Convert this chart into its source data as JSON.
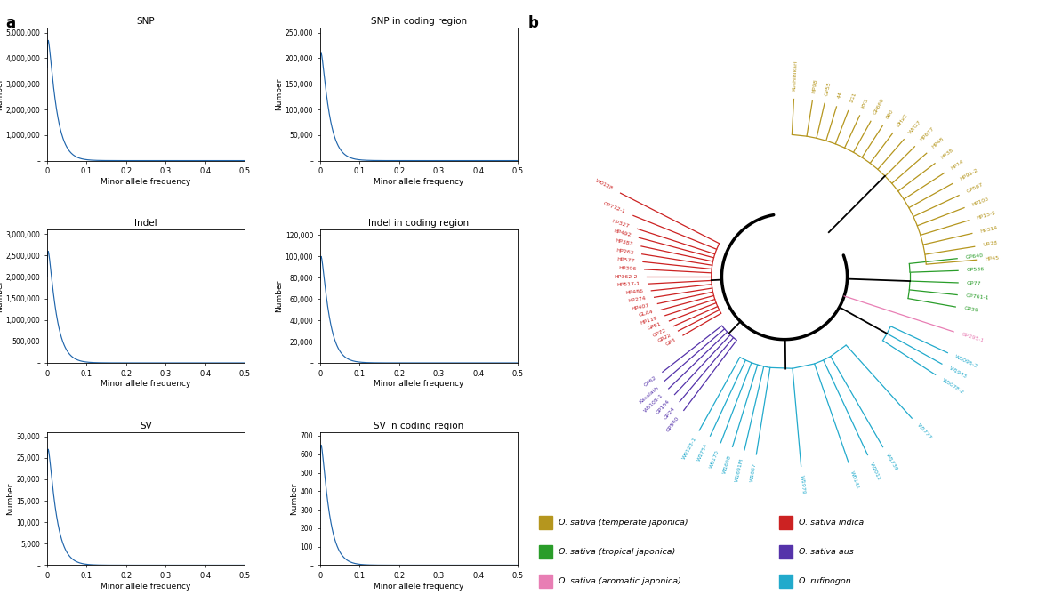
{
  "plots": [
    {
      "title": "SNP",
      "yticks": [
        0,
        1000000,
        2000000,
        3000000,
        4000000,
        5000000
      ],
      "ytick_labels": [
        "–",
        "1,000,000",
        "2,000,000",
        "3,000,000",
        "4,000,000",
        "5,000,000"
      ],
      "ymax": 5200000,
      "peak": 4700000,
      "shape": 1.15,
      "scale": 0.018
    },
    {
      "title": "SNP in coding region",
      "yticks": [
        0,
        50000,
        100000,
        150000,
        200000,
        250000
      ],
      "ytick_labels": [
        "–",
        "50,000",
        "100,000",
        "150,000",
        "200,000",
        "250,000"
      ],
      "ymax": 260000,
      "peak": 210000,
      "shape": 1.15,
      "scale": 0.018
    },
    {
      "title": "Indel",
      "yticks": [
        0,
        500000,
        1000000,
        1500000,
        2000000,
        2500000,
        3000000
      ],
      "ytick_labels": [
        "–",
        "500,000",
        "1,000,000",
        "1,500,000",
        "2,000,000",
        "2,500,000",
        "3,000,000"
      ],
      "ymax": 3100000,
      "peak": 2600000,
      "shape": 1.15,
      "scale": 0.018
    },
    {
      "title": "Indel in coding region",
      "yticks": [
        0,
        20000,
        40000,
        60000,
        80000,
        100000,
        120000
      ],
      "ytick_labels": [
        "–",
        "20,000",
        "40,000",
        "60,000",
        "80,000",
        "100,000",
        "120,000"
      ],
      "ymax": 125000,
      "peak": 100000,
      "shape": 1.15,
      "scale": 0.018
    },
    {
      "title": "SV",
      "yticks": [
        0,
        5000,
        10000,
        15000,
        20000,
        25000,
        30000
      ],
      "ytick_labels": [
        "–",
        "5,000",
        "10,000",
        "15,000",
        "20,000",
        "25,000",
        "30,000"
      ],
      "ymax": 31000,
      "peak": 27000,
      "shape": 1.15,
      "scale": 0.018
    },
    {
      "title": "SV in coding region",
      "yticks": [
        0,
        100,
        200,
        300,
        400,
        500,
        600,
        700
      ],
      "ytick_labels": [
        "–",
        "100",
        "200",
        "300",
        "400",
        "500",
        "600",
        "700"
      ],
      "ymax": 720,
      "peak": 650,
      "shape": 1.15,
      "scale": 0.018
    }
  ],
  "line_color": "#2166ac",
  "xlabel": "Minor allele frequency",
  "ylabel": "Number",
  "colors": {
    "temperate_japonica": "#b5961e",
    "tropical_japonica": "#2a9d2a",
    "aromatic_japonica": "#e87eb4",
    "indica": "#cc2222",
    "aus": "#5533aa",
    "rufipogon": "#22aacc"
  },
  "indica_members": [
    [
      "W0128",
      153,
      0.88
    ],
    [
      "GP772-1",
      158,
      0.78
    ],
    [
      "HP327",
      162,
      0.74
    ],
    [
      "HP492",
      165,
      0.72
    ],
    [
      "HP383",
      168,
      0.7
    ],
    [
      "HP263",
      171,
      0.69
    ],
    [
      "HP577",
      174,
      0.68
    ],
    [
      "HP396",
      177,
      0.67
    ],
    [
      "HP362-2",
      180,
      0.66
    ],
    [
      "HP517-1",
      183,
      0.65
    ],
    [
      "HP486",
      186,
      0.64
    ],
    [
      "HP274",
      189,
      0.63
    ],
    [
      "HP407",
      192,
      0.62
    ],
    [
      "GLA4",
      195,
      0.61
    ],
    [
      "HP119",
      198,
      0.6
    ],
    [
      "GP51",
      201,
      0.59
    ],
    [
      "GP72",
      204,
      0.58
    ],
    [
      "GP22",
      207,
      0.57
    ],
    [
      "GP3",
      210,
      0.56
    ]
  ],
  "aus_members": [
    [
      "GP62",
      218,
      0.74
    ],
    [
      "Kasalath",
      221,
      0.76
    ],
    [
      "W3105-1",
      224,
      0.77
    ],
    [
      "GP104",
      227,
      0.77
    ],
    [
      "GP24",
      230,
      0.78
    ],
    [
      "GP540",
      233,
      0.8
    ]
  ],
  "rufipogon_main_members": [
    [
      "W0123-1",
      241,
      0.84
    ],
    [
      "W1754",
      245,
      0.84
    ],
    [
      "W0170",
      249,
      0.85
    ],
    [
      "W1698",
      253,
      0.85
    ],
    [
      "W1691M",
      257,
      0.85
    ],
    [
      "W1687",
      261,
      0.86
    ],
    [
      "W1979",
      275,
      0.91
    ],
    [
      "W0141",
      289,
      0.94
    ],
    [
      "W2012",
      295,
      0.94
    ],
    [
      "W1739",
      300,
      0.94
    ],
    [
      "W1777",
      312,
      0.91
    ]
  ],
  "rufipogon_sub_members": [
    [
      "W3078-2",
      327,
      0.86
    ],
    [
      "W1943",
      331,
      0.86
    ],
    [
      "W3095-2",
      335,
      0.86
    ]
  ],
  "aromatic_member": [
    "GP295-1",
    342,
    0.85
  ],
  "tropical_members": [
    [
      "GP39",
      350,
      0.83
    ],
    [
      "GP761-1",
      354,
      0.83
    ],
    [
      "GP77",
      358,
      0.83
    ],
    [
      "GP536",
      362,
      0.83
    ],
    [
      "GP640",
      366,
      0.83
    ]
  ],
  "temperate_members": [
    [
      "HP45",
      5,
      0.92
    ],
    [
      "UR28",
      9,
      0.92
    ],
    [
      "HP314",
      13,
      0.92
    ],
    [
      "HP13-2",
      17,
      0.92
    ],
    [
      "HP103",
      21,
      0.92
    ],
    [
      "GP567",
      25,
      0.92
    ],
    [
      "HP91-2",
      29,
      0.92
    ],
    [
      "HP14",
      33,
      0.91
    ],
    [
      "HP38",
      37,
      0.9
    ],
    [
      "HP48",
      41,
      0.9
    ],
    [
      "HP677",
      45,
      0.88
    ],
    [
      "WYG7",
      49,
      0.87
    ],
    [
      "DHx2",
      53,
      0.86
    ],
    [
      "060",
      57,
      0.86
    ],
    [
      "GP669",
      61,
      0.85
    ],
    [
      "KY3",
      65,
      0.85
    ],
    [
      "1G1",
      69,
      0.85
    ],
    [
      "44",
      73,
      0.85
    ],
    [
      "GP55",
      77,
      0.85
    ],
    [
      "HP98",
      81,
      0.85
    ],
    [
      "Koshihikari",
      87,
      0.85
    ]
  ],
  "legend_col1": [
    {
      "color": "#b5961e",
      "text": "O. sativa (temperate japonica)"
    },
    {
      "color": "#2a9d2a",
      "text": "O. sativa (tropical japonica)"
    },
    {
      "color": "#e87eb4",
      "text": "O. sativa (aromatic japonica)"
    }
  ],
  "legend_col2": [
    {
      "color": "#cc2222",
      "text": "O. sativa indica"
    },
    {
      "color": "#5533aa",
      "text": "O. sativa aus"
    },
    {
      "color": "#22aacc",
      "text": "O. rufipogon"
    }
  ]
}
